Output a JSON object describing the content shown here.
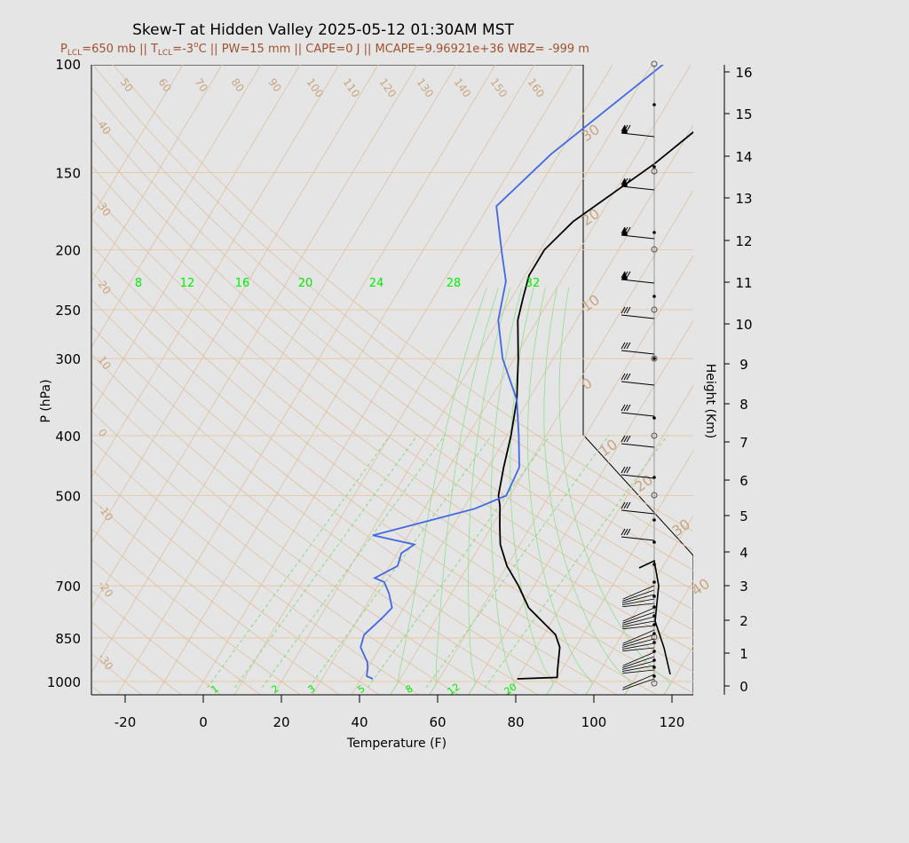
{
  "title": "Skew-T at Hidden Valley 2025-05-12 01:30AM MST",
  "subtitle_parts": [
    "P",
    "LCL",
    "=650 mb || T",
    "LCL",
    "=-3",
    "o",
    "C || PW=15 mm || CAPE=0 J || MCAPE=9.96921e+36 WBZ= -999 m"
  ],
  "chart_data": {
    "type": "line",
    "xlabel": "Temperature (F)",
    "ylabel": "P (hPa)",
    "y2label": "Height (Km)",
    "xlim": [
      -28,
      125
    ],
    "ylim_hpa": [
      1030,
      100
    ],
    "x_ticks": [
      -20,
      0,
      20,
      40,
      60,
      80,
      100,
      120
    ],
    "p_ticks": [
      100,
      150,
      200,
      250,
      300,
      400,
      500,
      700,
      850,
      1000
    ],
    "height_ticks": [
      0,
      1,
      2,
      3,
      4,
      5,
      6,
      7,
      8,
      9,
      10,
      11,
      12,
      13,
      14,
      15,
      16
    ],
    "isotherm_labels_top": [
      "50",
      "60",
      "70",
      "80",
      "90",
      "100",
      "110",
      "120",
      "130",
      "140",
      "150",
      "160"
    ],
    "isotherm_labels_left": [
      "40",
      "30",
      "20",
      "10",
      "0",
      "-10",
      "-20",
      "-30"
    ],
    "isotherm_labels_right": [
      "30",
      "20",
      "10",
      "0",
      "10",
      "20",
      "30",
      "40"
    ],
    "mixing_ratio_labels_top": [
      "8",
      "12",
      "16",
      "20",
      "24",
      "28",
      "32"
    ],
    "mixing_ratio_labels_bottom": [
      "1",
      "2",
      "3",
      "5",
      "8",
      "12",
      "20"
    ],
    "series": [
      {
        "color": "#000000",
        "points": [
          [
            80,
            990
          ],
          [
            90,
            985
          ],
          [
            89,
            960
          ],
          [
            86,
            880
          ],
          [
            83,
            840
          ],
          [
            72,
            760
          ],
          [
            66,
            700
          ],
          [
            60,
            650
          ],
          [
            55,
            600
          ],
          [
            52,
            560
          ],
          [
            49,
            520
          ],
          [
            47,
            500
          ],
          [
            44,
            450
          ],
          [
            41,
            400
          ],
          [
            37,
            350
          ],
          [
            31,
            300
          ],
          [
            25,
            260
          ],
          [
            23,
            240
          ],
          [
            21,
            220
          ],
          [
            21,
            200
          ],
          [
            24,
            180
          ],
          [
            36,
            145
          ],
          [
            52,
            100
          ]
        ]
      },
      {
        "color": "#4169e1",
        "points": [
          [
            43,
            990
          ],
          [
            41,
            980
          ],
          [
            40,
            950
          ],
          [
            39,
            930
          ],
          [
            35,
            880
          ],
          [
            34,
            840
          ],
          [
            36,
            790
          ],
          [
            37,
            760
          ],
          [
            34,
            720
          ],
          [
            31,
            690
          ],
          [
            28,
            680
          ],
          [
            32,
            650
          ],
          [
            31,
            620
          ],
          [
            33,
            600
          ],
          [
            21,
            580
          ],
          [
            43,
            525
          ],
          [
            49,
            500
          ],
          [
            48,
            450
          ],
          [
            43,
            400
          ],
          [
            37,
            350
          ],
          [
            27,
            300
          ],
          [
            20,
            260
          ],
          [
            16,
            225
          ],
          [
            10,
            200
          ],
          [
            2,
            170
          ],
          [
            8,
            140
          ],
          [
            23,
            100
          ]
        ]
      }
    ]
  }
}
